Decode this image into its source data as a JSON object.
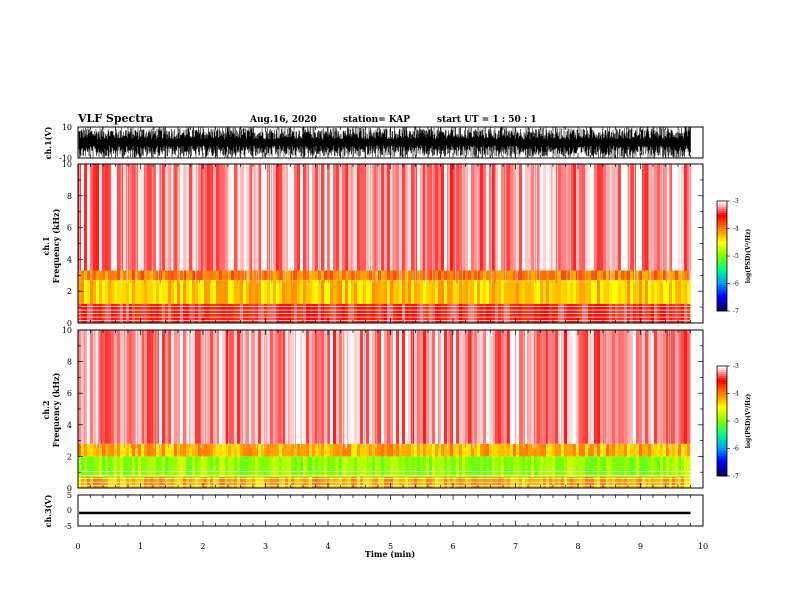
{
  "header": {
    "title": "VLF Spectra",
    "date": "Aug.16, 2020",
    "station": "station= KAP",
    "start": "start  UT =   1 : 50 : 1"
  },
  "chart_data": [
    {
      "type": "line",
      "panel": "ch1-waveform",
      "ylabel": "ch.1(V)",
      "ylim": [
        -10,
        10
      ],
      "yticks": [
        "10",
        "-10"
      ],
      "xlim": [
        0,
        10
      ],
      "x_end": 9.8,
      "description_values": {
        "typical_amplitude_range": [
          -10,
          10
        ],
        "signal": "dense noise waveform"
      }
    },
    {
      "type": "heatmap",
      "panel": "ch1-spectrogram",
      "ylabel": "ch.1 Frequency (kHz)",
      "ylabel_lines": [
        "ch.1",
        "Frequency (kHz)"
      ],
      "ylim": [
        0,
        10
      ],
      "yticks": [
        "0",
        "2",
        "4",
        "6",
        "8",
        "10"
      ],
      "xlim": [
        0,
        10
      ],
      "x_end": 9.8,
      "band_intensity_log_psd": [
        {
          "f_low": 0,
          "f_high": 1.2,
          "level": -3.5
        },
        {
          "f_low": 1.2,
          "f_high": 2.7,
          "level": -4.3
        },
        {
          "f_low": 2.7,
          "f_high": 3.3,
          "level": -4.0
        },
        {
          "f_low": 3.3,
          "f_high": 10,
          "level": -3.2
        }
      ],
      "colorbar": {
        "label": "log(PSD)(V²/Hz)",
        "range": [
          -7,
          -3
        ],
        "ticks": [
          "-3",
          "-4",
          "-5",
          "-6",
          "-7"
        ]
      }
    },
    {
      "type": "heatmap",
      "panel": "ch2-spectrogram",
      "ylabel": "ch.2 Frequency (kHz)",
      "ylabel_lines": [
        "ch.2",
        "Frequency (kHz)"
      ],
      "ylim": [
        0,
        10
      ],
      "yticks": [
        "0",
        "2",
        "4",
        "6",
        "8",
        "10"
      ],
      "xlim": [
        0,
        10
      ],
      "x_end": 9.8,
      "band_intensity_log_psd": [
        {
          "f_low": 0,
          "f_high": 0.7,
          "level": -4.2
        },
        {
          "f_low": 0.7,
          "f_high": 2.0,
          "level": -4.9
        },
        {
          "f_low": 2.0,
          "f_high": 2.8,
          "level": -4.2
        },
        {
          "f_low": 2.8,
          "f_high": 10,
          "level": -3.2
        }
      ],
      "colorbar": {
        "label": "log(PSD)(V²/Hz)",
        "range": [
          -7,
          -3
        ],
        "ticks": [
          "-3",
          "-4",
          "-5",
          "-6",
          "-7"
        ]
      }
    },
    {
      "type": "line",
      "panel": "ch3-waveform",
      "ylabel": "ch.3(V)",
      "ylim": [
        -5,
        5
      ],
      "yticks": [
        "5",
        "0",
        "-5"
      ],
      "xlim": [
        0,
        10
      ],
      "x_end": 9.8,
      "description_values": {
        "band_center": -0.8,
        "band_halfwidth": 0.4
      }
    }
  ],
  "xaxis": {
    "label": "Time (min)",
    "ticks": [
      "0",
      "1",
      "2",
      "3",
      "4",
      "5",
      "6",
      "7",
      "8",
      "9",
      "10"
    ]
  },
  "colors": {
    "colormap": [
      "#000060",
      "#0000ff",
      "#00a0ff",
      "#00ff80",
      "#80ff00",
      "#ffff00",
      "#ff8000",
      "#ff0000",
      "#ffffff"
    ]
  }
}
